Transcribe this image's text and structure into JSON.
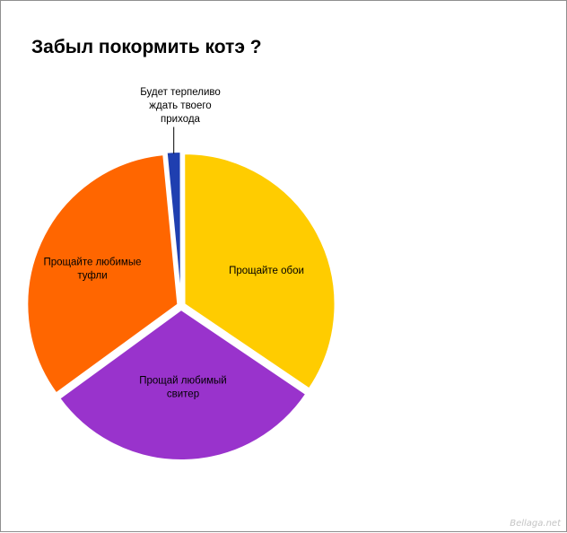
{
  "chart_data": {
    "type": "pie",
    "title": "Забыл покормить котэ ?",
    "slices": [
      {
        "label": "Будет терпеливо ждать твоего прихода",
        "value": 1.5,
        "color": "#1f3fb0",
        "label_lines": [
          "Будет терпеливо",
          "ждать твоего",
          "прихода"
        ]
      },
      {
        "label": "Прощайте обои",
        "value": 34.5,
        "color": "#ffcc00",
        "label_lines": [
          "Прощайте обои"
        ]
      },
      {
        "label": "Прощай любимый свитер",
        "value": 30.5,
        "color": "#9933cc",
        "label_lines": [
          "Прощай любимый",
          "свитер"
        ]
      },
      {
        "label": "Прощайте любимые туфли",
        "value": 33.5,
        "color": "#ff6600",
        "label_lines": [
          "Прощайте любимые",
          "туфли"
        ]
      }
    ],
    "legend": "none"
  },
  "watermark": "Bellaga.net"
}
